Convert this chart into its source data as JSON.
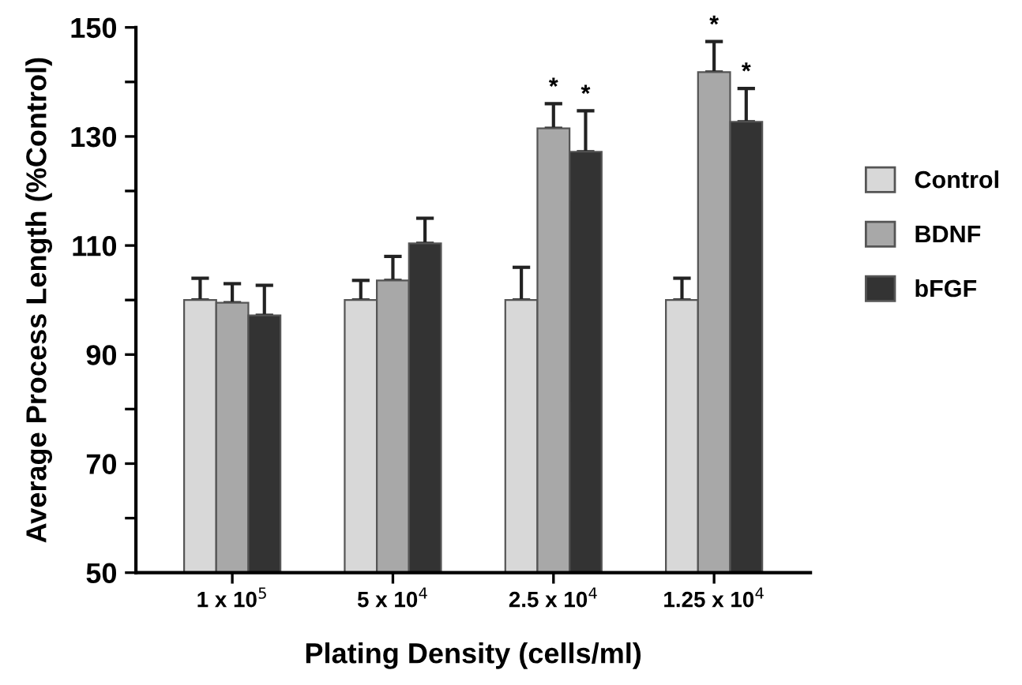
{
  "chart_data": {
    "type": "bar",
    "xlabel": "Plating Density (cells/ml)",
    "ylabel": "Average Process Length (%Control)",
    "categories": [
      "1 x 10$^{5}$",
      "5 x 10$^{4}$",
      "2.5 x 10$^{4}$",
      "1.25 x 10$^{4}$"
    ],
    "series": [
      {
        "name": "Control",
        "color": "#d8d8d8",
        "values": [
          100,
          100,
          100,
          100
        ],
        "errors": [
          [
            100,
            104
          ],
          [
            100,
            103.6
          ],
          [
            100,
            106
          ],
          [
            100,
            104
          ]
        ]
      },
      {
        "name": "BDNF",
        "color": "#a8a8a8",
        "values": [
          99.5,
          103.6,
          131.5,
          141.8
        ],
        "value_labels": [
          null,
          null,
          "*",
          "*"
        ],
        "errors": [
          [
            99.5,
            103
          ],
          [
            103.6,
            108
          ],
          [
            131.5,
            136
          ],
          [
            141.8,
            147.4
          ]
        ]
      },
      {
        "name": "bFGF",
        "color": "#333333",
        "values": [
          97.2,
          110.4,
          127.2,
          132.7
        ],
        "value_labels": [
          null,
          null,
          "*",
          "*"
        ],
        "errors": [
          [
            97.2,
            102.7
          ],
          [
            110.4,
            115
          ],
          [
            127.2,
            134.7
          ],
          [
            132.7,
            138.8
          ]
        ]
      }
    ],
    "ylim": [
      50,
      150
    ],
    "yticks": [
      50,
      {
        "value": 60,
        "label": null
      },
      70,
      {
        "value": 80,
        "label": null
      },
      90,
      {
        "value": 100,
        "label": null
      },
      110,
      {
        "value": 120,
        "label": null
      },
      130,
      {
        "value": 140,
        "label": null
      },
      150
    ],
    "legend": "right",
    "grid": false
  }
}
